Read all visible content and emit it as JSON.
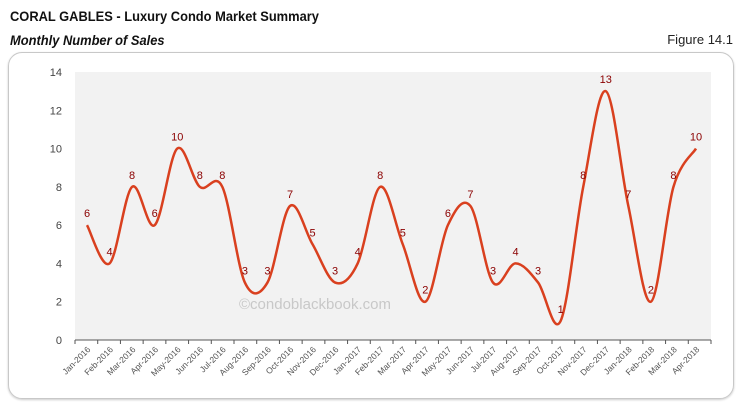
{
  "header": {
    "title": "CORAL GABLES - Luxury Condo Market Summary",
    "subtitle": "Monthly Number of Sales",
    "figure": "Figure 14.1"
  },
  "watermark": "©condoblackbook.com",
  "chart_data": {
    "type": "line",
    "title": "Monthly Number of Sales",
    "categories": [
      "Jan-2016",
      "Feb-2016",
      "Mar-2016",
      "Apr-2016",
      "May-2016",
      "Jun-2016",
      "Jul-2016",
      "Aug-2016",
      "Sep-2016",
      "Oct-2016",
      "Nov-2016",
      "Dec-2016",
      "Jan-2017",
      "Feb-2017",
      "Mar-2017",
      "Apr-2017",
      "May-2017",
      "Jun-2017",
      "Jul-2017",
      "Aug-2017",
      "Sep-2017",
      "Oct-2017",
      "Nov-2017",
      "Dec-2017",
      "Jan-2018",
      "Feb-2018",
      "Mar-2018",
      "Apr-2018"
    ],
    "values": [
      6,
      4,
      8,
      6,
      10,
      8,
      8,
      3,
      3,
      7,
      5,
      3,
      4,
      8,
      5,
      2,
      6,
      7,
      3,
      4,
      3,
      1,
      8,
      13,
      7,
      2,
      8,
      10
    ],
    "ylim": [
      0,
      14
    ],
    "yticks": [
      0,
      2,
      4,
      6,
      8,
      10,
      12,
      14
    ],
    "smooth": true,
    "grid": false,
    "colors": {
      "line": "#d9401f",
      "label": "#8b0000",
      "plot_bg": "#f2f2f2"
    }
  }
}
